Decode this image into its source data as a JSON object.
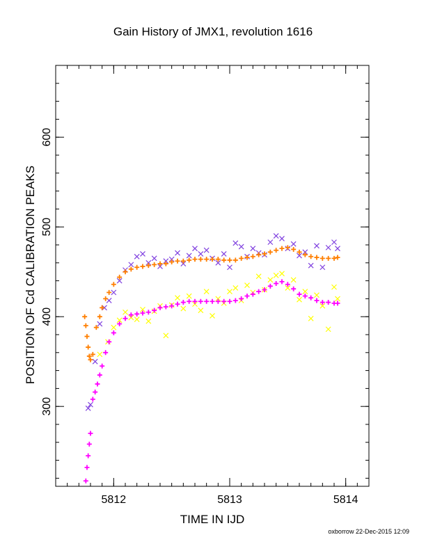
{
  "chart_data": {
    "type": "scatter",
    "title": "Gain History of JMX1, revolution 1616",
    "xlabel": "TIME IN IJD",
    "ylabel": "POSITION OF Cd CALIBRATION PEAKS",
    "xlim": [
      5811.5,
      5814.2
    ],
    "ylim": [
      211,
      680
    ],
    "xticks": [
      5812,
      5813,
      5814
    ],
    "yticks": [
      300,
      400,
      500,
      600
    ],
    "grid": false,
    "legend": "none",
    "series": [
      {
        "marker": "x",
        "color": "#7f3fdf",
        "x": [
          5811.78,
          5811.8,
          5811.84,
          5811.88,
          5811.92,
          5811.96,
          5812.0,
          5812.05,
          5812.1,
          5812.15,
          5812.2,
          5812.25,
          5812.3,
          5812.35,
          5812.4,
          5812.45,
          5812.5,
          5812.55,
          5812.6,
          5812.65,
          5812.7,
          5812.75,
          5812.8,
          5812.85,
          5812.9,
          5812.95,
          5813.0,
          5813.05,
          5813.1,
          5813.15,
          5813.2,
          5813.25,
          5813.3,
          5813.35,
          5813.4,
          5813.45,
          5813.5,
          5813.55,
          5813.6,
          5813.65,
          5813.7,
          5813.75,
          5813.8,
          5813.85,
          5813.9,
          5813.93
        ],
        "y": [
          298,
          302,
          350,
          392,
          410,
          418,
          427,
          440,
          452,
          458,
          467,
          470,
          460,
          465,
          456,
          462,
          464,
          471,
          459,
          468,
          476,
          470,
          474,
          465,
          460,
          470,
          455,
          482,
          478,
          467,
          476,
          471,
          469,
          483,
          490,
          487,
          476,
          481,
          468,
          472,
          457,
          479,
          455,
          477,
          483,
          476
        ]
      },
      {
        "marker": "x",
        "color": "#ffff00",
        "x": [
          5811.88,
          5811.95,
          5812.0,
          5812.05,
          5812.1,
          5812.15,
          5812.2,
          5812.25,
          5812.3,
          5812.35,
          5812.4,
          5812.45,
          5812.5,
          5812.55,
          5812.6,
          5812.65,
          5812.7,
          5812.75,
          5812.8,
          5812.85,
          5812.9,
          5812.95,
          5813.0,
          5813.05,
          5813.1,
          5813.15,
          5813.2,
          5813.25,
          5813.3,
          5813.35,
          5813.4,
          5813.45,
          5813.5,
          5813.55,
          5813.6,
          5813.65,
          5813.7,
          5813.75,
          5813.8,
          5813.85,
          5813.9,
          5813.93
        ],
        "y": [
          358,
          372,
          388,
          396,
          405,
          399,
          397,
          408,
          395,
          406,
          412,
          379,
          413,
          421,
          409,
          423,
          414,
          407,
          428,
          401,
          420,
          415,
          428,
          432,
          418,
          435,
          427,
          445,
          430,
          441,
          446,
          448,
          432,
          441,
          419,
          428,
          398,
          424,
          412,
          386,
          433,
          420
        ]
      },
      {
        "marker": "+",
        "color": "#ff7f00",
        "x": [
          5811.75,
          5811.76,
          5811.77,
          5811.78,
          5811.79,
          5811.8,
          5811.82,
          5811.85,
          5811.88,
          5811.9,
          5811.93,
          5811.96,
          5812.0,
          5812.05,
          5812.1,
          5812.15,
          5812.2,
          5812.25,
          5812.3,
          5812.35,
          5812.4,
          5812.45,
          5812.5,
          5812.55,
          5812.6,
          5812.65,
          5812.7,
          5812.75,
          5812.8,
          5812.85,
          5812.9,
          5812.95,
          5813.0,
          5813.05,
          5813.1,
          5813.15,
          5813.2,
          5813.25,
          5813.3,
          5813.35,
          5813.4,
          5813.45,
          5813.5,
          5813.55,
          5813.6,
          5813.65,
          5813.7,
          5813.75,
          5813.8,
          5813.85,
          5813.9,
          5813.93
        ],
        "y": [
          400,
          390,
          378,
          366,
          356,
          352,
          358,
          388,
          400,
          410,
          420,
          427,
          436,
          444,
          450,
          453,
          455,
          456,
          457,
          458,
          459,
          459,
          461,
          462,
          462,
          463,
          464,
          464,
          464,
          464,
          464,
          463,
          463,
          463,
          465,
          466,
          467,
          469,
          470,
          472,
          474,
          476,
          477,
          475,
          472,
          469,
          467,
          466,
          465,
          465,
          465,
          466
        ]
      },
      {
        "marker": "+",
        "color": "#ff00ff",
        "x": [
          5811.76,
          5811.77,
          5811.78,
          5811.79,
          5811.8,
          5811.82,
          5811.84,
          5811.86,
          5811.88,
          5811.9,
          5811.93,
          5811.96,
          5812.0,
          5812.05,
          5812.1,
          5812.15,
          5812.2,
          5812.25,
          5812.3,
          5812.35,
          5812.4,
          5812.45,
          5812.5,
          5812.55,
          5812.6,
          5812.65,
          5812.7,
          5812.75,
          5812.8,
          5812.85,
          5812.9,
          5812.95,
          5813.0,
          5813.05,
          5813.1,
          5813.15,
          5813.2,
          5813.25,
          5813.3,
          5813.35,
          5813.4,
          5813.45,
          5813.5,
          5813.55,
          5813.6,
          5813.65,
          5813.7,
          5813.75,
          5813.8,
          5813.85,
          5813.9,
          5813.93
        ],
        "y": [
          217,
          232,
          245,
          258,
          270,
          308,
          316,
          325,
          335,
          345,
          360,
          372,
          382,
          392,
          398,
          402,
          403,
          404,
          405,
          407,
          410,
          411,
          412,
          414,
          416,
          417,
          417,
          417,
          417,
          417,
          417,
          417,
          417,
          418,
          420,
          423,
          425,
          428,
          430,
          434,
          437,
          439,
          436,
          431,
          425,
          423,
          421,
          418,
          416,
          416,
          415,
          415
        ]
      }
    ]
  },
  "footer": {
    "credit": "oxborrow 22-Dec-2015 12:09"
  }
}
